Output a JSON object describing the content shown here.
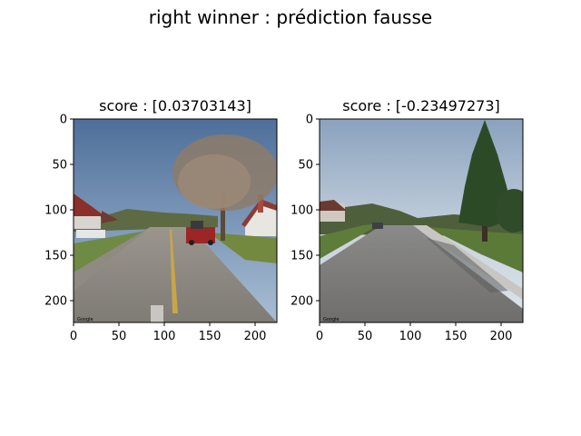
{
  "figure": {
    "title": "right winner : prédiction fausse"
  },
  "chart_data": [
    {
      "type": "image",
      "title": "score : [0.03703143]",
      "score": 0.03703143,
      "xlim": [
        0,
        224
      ],
      "ylim": [
        224,
        0
      ],
      "xticks": [
        0,
        50,
        100,
        150,
        200
      ],
      "yticks": [
        0,
        50,
        100,
        150,
        200
      ],
      "watermark": "Google",
      "image_description": "street-view-suburban-road-with-red-vehicle-and-bare-tree"
    },
    {
      "type": "image",
      "title": "score : [-0.23497273]",
      "score": -0.23497273,
      "xlim": [
        0,
        224
      ],
      "ylim": [
        224,
        0
      ],
      "xticks": [
        0,
        50,
        100,
        150,
        200
      ],
      "yticks": [
        0,
        50,
        100,
        150,
        200
      ],
      "watermark": "Google",
      "image_description": "street-view-suburban-road-with-evergreen-tree-and-sidewalk"
    }
  ]
}
